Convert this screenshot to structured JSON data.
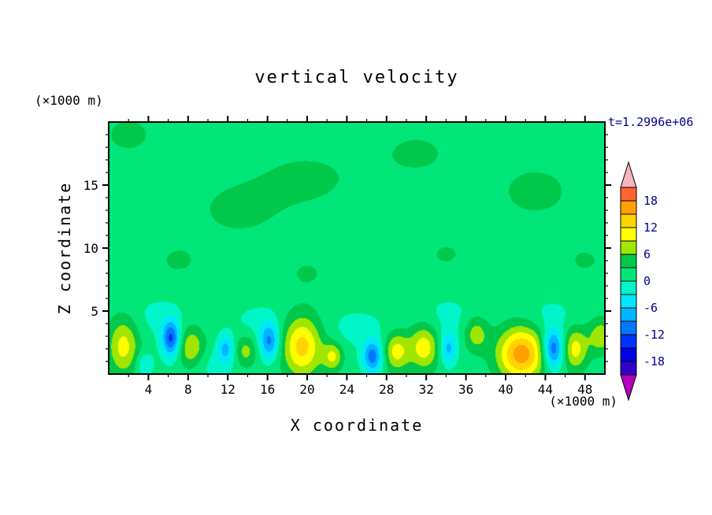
{
  "page": {
    "background": "#ffffff"
  },
  "chart_data": {
    "type": "heatmap",
    "title": "vertical velocity",
    "time_label": "t=1.2996e+06",
    "xlabel": "X coordinate",
    "ylabel": "Z coordinate",
    "x_unit_label": "(×1000 m)",
    "y_unit_label": "(×1000 m)",
    "xlim": [
      0,
      50
    ],
    "zlim": [
      0,
      20
    ],
    "x_major_ticks": [
      4,
      8,
      12,
      16,
      20,
      24,
      28,
      32,
      36,
      40,
      44,
      48
    ],
    "x_minor_step": 2,
    "y_major_ticks": [
      5,
      10,
      15
    ],
    "y_minor_step": 1,
    "grid": false,
    "legend_position": "right-colorbar",
    "axis_color": "#000000",
    "text_color": "#000000",
    "colorbar": {
      "tick_labels": [
        "18",
        "12",
        "6",
        "0",
        "-6",
        "-12",
        "-18"
      ],
      "tick_values": [
        18,
        12,
        6,
        0,
        -6,
        -12,
        -18
      ],
      "label_color": "#00008C"
    },
    "palette": {
      "min_level": -21,
      "level_step": 3,
      "band_colors": [
        "#3200C8",
        "#0000E6",
        "#0032FF",
        "#0078FF",
        "#00B4FF",
        "#00E6FF",
        "#00F5C8",
        "#00E678",
        "#00C84B",
        "#A0E600",
        "#FFFF00",
        "#FFD200",
        "#FFA000",
        "#FF6432"
      ],
      "under_color": "#B400BE",
      "over_color": "#F5B4BE"
    },
    "field": {
      "background_value": 1.2,
      "features": [
        {
          "x": 2,
          "z": 19,
          "sx": 2.5,
          "sz": 1.5,
          "a": 2.3
        },
        {
          "x": 13,
          "z": 13,
          "sx": 3.5,
          "sz": 1.8,
          "a": 2.4
        },
        {
          "x": 20,
          "z": 15.5,
          "sx": 4.0,
          "sz": 1.8,
          "a": 2.4
        },
        {
          "x": 31,
          "z": 17.5,
          "sx": 3.0,
          "sz": 1.5,
          "a": 2.3
        },
        {
          "x": 43,
          "z": 14.5,
          "sx": 3.5,
          "sz": 2.0,
          "a": 2.4
        },
        {
          "x": 7,
          "z": 9,
          "sx": 2.0,
          "sz": 1.2,
          "a": 2.1
        },
        {
          "x": 20,
          "z": 8,
          "sx": 2.0,
          "sz": 1.2,
          "a": 2.0
        },
        {
          "x": 34,
          "z": 9.5,
          "sx": 2.0,
          "sz": 1.2,
          "a": 2.0
        },
        {
          "x": 48,
          "z": 9,
          "sx": 2.0,
          "sz": 1.2,
          "a": 2.0
        },
        {
          "x": 1.5,
          "z": 2.2,
          "sx": 1.1,
          "sz": 1.6,
          "a": 9
        },
        {
          "x": 8.3,
          "z": 2.0,
          "sx": 1.0,
          "sz": 1.2,
          "a": 8
        },
        {
          "x": 13.8,
          "z": 1.8,
          "sx": 0.8,
          "sz": 0.9,
          "a": 6
        },
        {
          "x": 19.5,
          "z": 2.2,
          "sx": 1.4,
          "sz": 1.7,
          "a": 12
        },
        {
          "x": 22.6,
          "z": 1.4,
          "sx": 0.7,
          "sz": 0.8,
          "a": 8
        },
        {
          "x": 29.0,
          "z": 1.8,
          "sx": 0.9,
          "sz": 1.1,
          "a": 9
        },
        {
          "x": 31.8,
          "z": 2.2,
          "sx": 1.1,
          "sz": 1.3,
          "a": 10
        },
        {
          "x": 37.0,
          "z": 3.2,
          "sx": 0.9,
          "sz": 1.0,
          "a": 7
        },
        {
          "x": 41.6,
          "z": 1.6,
          "sx": 1.7,
          "sz": 1.5,
          "a": 15.5
        },
        {
          "x": 47.0,
          "z": 2.0,
          "sx": 0.9,
          "sz": 1.2,
          "a": 9
        },
        {
          "x": 49.6,
          "z": 3.0,
          "sx": 0.9,
          "sz": 1.0,
          "a": 7
        },
        {
          "x": 6.3,
          "z": 2.8,
          "sx": 0.65,
          "sz": 1.0,
          "a": -14
        },
        {
          "x": 11.8,
          "z": 2.0,
          "sx": 0.6,
          "sz": 0.8,
          "a": -8
        },
        {
          "x": 16.2,
          "z": 2.6,
          "sx": 0.7,
          "sz": 1.0,
          "a": -11
        },
        {
          "x": 26.6,
          "z": 1.4,
          "sx": 0.7,
          "sz": 0.9,
          "a": -12
        },
        {
          "x": 34.2,
          "z": 2.0,
          "sx": 0.6,
          "sz": 0.9,
          "a": -8
        },
        {
          "x": 44.8,
          "z": 2.0,
          "sx": 0.75,
          "sz": 1.1,
          "a": -14
        },
        {
          "x": 3.6,
          "z": 0.8,
          "sx": 0.6,
          "sz": 0.6,
          "a": -5
        },
        {
          "x": 10,
          "z": 0.8,
          "sx": 2.0,
          "sz": 0.9,
          "a": -2.4
        },
        {
          "x": 25,
          "z": 3.6,
          "sx": 2.2,
          "sz": 1.1,
          "a": -2.2
        },
        {
          "x": 34,
          "z": 4.2,
          "sx": 2.6,
          "sz": 1.4,
          "a": -2.2
        },
        {
          "x": 44.5,
          "z": 4.6,
          "sx": 2.0,
          "sz": 1.0,
          "a": -2.0
        },
        {
          "x": 5,
          "z": 4.5,
          "sx": 2.0,
          "sz": 1.2,
          "a": -2.0
        },
        {
          "x": 15,
          "z": 4.2,
          "sx": 1.8,
          "sz": 1.0,
          "a": -2.0
        }
      ]
    }
  }
}
